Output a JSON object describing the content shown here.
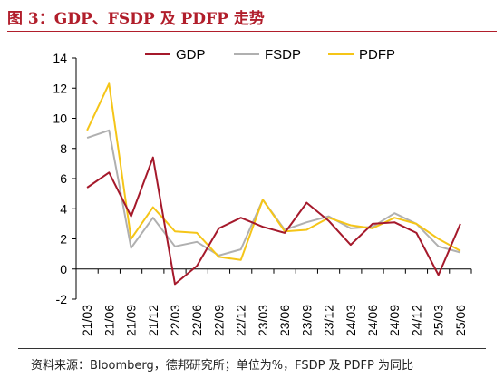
{
  "header": {
    "title": "图 3：GDP、FSDP 及 PDFP 走势"
  },
  "footer": {
    "source": "资料来源：Bloomberg，德邦研究所；单位为%，FSDP 及 PDFP 为同比"
  },
  "chart_data": {
    "type": "line",
    "title": "",
    "xlabel": "",
    "ylabel": "",
    "categories": [
      "21/03",
      "21/06",
      "21/09",
      "21/12",
      "22/03",
      "22/06",
      "22/09",
      "22/12",
      "23/03",
      "23/06",
      "23/09",
      "23/12",
      "24/03",
      "24/06",
      "24/09",
      "24/12",
      "25/03",
      "25/06"
    ],
    "ylim": [
      -2,
      14
    ],
    "yticks": [
      -2,
      0,
      2,
      4,
      6,
      8,
      10,
      12,
      14
    ],
    "grid": false,
    "legend_position": "top",
    "series": [
      {
        "name": "GDP",
        "color": "#a5192b",
        "values": [
          5.4,
          6.4,
          3.5,
          7.4,
          -1.0,
          0.2,
          2.7,
          3.4,
          2.8,
          2.4,
          4.4,
          3.2,
          1.6,
          3.0,
          3.1,
          2.4,
          -0.4,
          3.0
        ]
      },
      {
        "name": "FSDP",
        "color": "#b0b0b0",
        "values": [
          8.7,
          9.2,
          1.4,
          3.4,
          1.5,
          1.8,
          0.9,
          1.3,
          4.6,
          2.6,
          3.1,
          3.5,
          2.7,
          2.8,
          3.7,
          3.0,
          1.5,
          1.1
        ]
      },
      {
        "name": "PDFP",
        "color": "#f5c518",
        "values": [
          9.2,
          12.3,
          2.0,
          4.1,
          2.5,
          2.4,
          0.8,
          0.6,
          4.6,
          2.5,
          2.6,
          3.4,
          2.9,
          2.7,
          3.4,
          3.0,
          2.0,
          1.2
        ]
      }
    ]
  }
}
